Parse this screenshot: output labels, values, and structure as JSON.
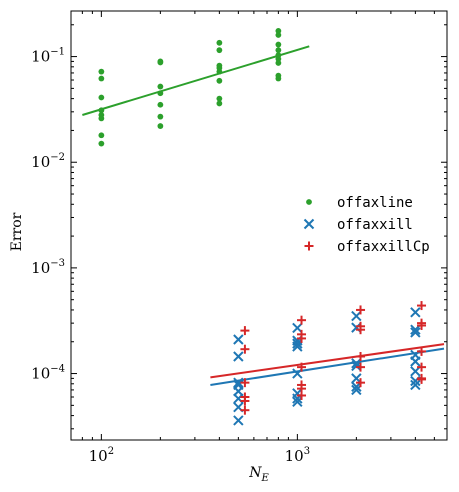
{
  "chart_data": {
    "type": "scatter",
    "xscale": "log",
    "yscale": "log",
    "xlim": [
      70,
      5800
    ],
    "ylim": [
      2.35e-05,
      0.27
    ],
    "xticks": [
      {
        "value": 100,
        "base": "10",
        "exp": "2"
      },
      {
        "value": 1000,
        "base": "10",
        "exp": "3"
      }
    ],
    "yticks": [
      {
        "value": 0.0001,
        "base": "10",
        "exp": "−4"
      },
      {
        "value": 0.001,
        "base": "10",
        "exp": "−3"
      },
      {
        "value": 0.01,
        "base": "10",
        "exp": "−2"
      },
      {
        "value": 0.1,
        "base": "10",
        "exp": "−1"
      }
    ],
    "xlabel": {
      "base": "N",
      "sub": "E"
    },
    "ylabel": "Error",
    "grid": false,
    "legend_position": "center-right",
    "series": [
      {
        "name": "offaxline",
        "marker": "dot",
        "color": "#2ca02c",
        "points": [
          [
            100,
            0.072
          ],
          [
            100,
            0.062
          ],
          [
            100,
            0.041
          ],
          [
            100,
            0.031
          ],
          [
            100,
            0.028
          ],
          [
            100,
            0.026
          ],
          [
            100,
            0.018
          ],
          [
            100,
            0.015
          ],
          [
            200,
            0.09
          ],
          [
            200,
            0.088
          ],
          [
            200,
            0.052
          ],
          [
            200,
            0.045
          ],
          [
            200,
            0.035
          ],
          [
            200,
            0.027
          ],
          [
            200,
            0.022
          ],
          [
            400,
            0.135
          ],
          [
            400,
            0.115
          ],
          [
            400,
            0.082
          ],
          [
            400,
            0.078
          ],
          [
            400,
            0.072
          ],
          [
            400,
            0.059
          ],
          [
            400,
            0.04
          ],
          [
            400,
            0.036
          ],
          [
            800,
            0.175
          ],
          [
            800,
            0.16
          ],
          [
            800,
            0.13
          ],
          [
            800,
            0.115
          ],
          [
            800,
            0.103
          ],
          [
            800,
            0.095
          ],
          [
            800,
            0.087
          ],
          [
            800,
            0.066
          ],
          [
            800,
            0.062
          ]
        ],
        "fit": [
          [
            80,
            0.028
          ],
          [
            1150,
            0.125
          ]
        ]
      },
      {
        "name": "offaxxill",
        "marker": "x",
        "color": "#1f77b4",
        "points": [
          [
            500,
            0.00021
          ],
          [
            500,
            0.000145
          ],
          [
            500,
            8.2e-05
          ],
          [
            500,
            7.8e-05
          ],
          [
            500,
            6.8e-05
          ],
          [
            500,
            5.8e-05
          ],
          [
            500,
            4.8e-05
          ],
          [
            500,
            3.6e-05
          ],
          [
            1000,
            0.00027
          ],
          [
            1000,
            0.000205
          ],
          [
            1000,
            0.000192
          ],
          [
            1000,
            0.00018
          ],
          [
            1000,
            0.0001
          ],
          [
            1000,
            6.5e-05
          ],
          [
            1000,
            5.8e-05
          ],
          [
            1000,
            5.4e-05
          ],
          [
            2000,
            0.00035
          ],
          [
            2000,
            0.000272
          ],
          [
            2000,
            0.000125
          ],
          [
            2000,
            0.000118
          ],
          [
            2000,
            9e-05
          ],
          [
            2000,
            7.5e-05
          ],
          [
            2000,
            7e-05
          ],
          [
            4000,
            0.00038
          ],
          [
            4000,
            0.00026
          ],
          [
            4000,
            0.000245
          ],
          [
            4000,
            0.00015
          ],
          [
            4000,
            0.00013
          ],
          [
            4000,
            0.000105
          ],
          [
            4000,
            8.5e-05
          ],
          [
            4000,
            7.8e-05
          ]
        ],
        "fit": [
          [
            360,
            7.8e-05
          ],
          [
            5600,
            0.000172
          ]
        ]
      },
      {
        "name": "offaxxillCp",
        "marker": "plus",
        "color": "#d62728",
        "points": [
          [
            540,
            0.000255
          ],
          [
            540,
            0.00017
          ],
          [
            540,
            8.2e-05
          ],
          [
            540,
            6e-05
          ],
          [
            540,
            5.5e-05
          ],
          [
            540,
            4.5e-05
          ],
          [
            1050,
            0.00032
          ],
          [
            1050,
            0.000235
          ],
          [
            1050,
            0.000215
          ],
          [
            1050,
            0.000115
          ],
          [
            1050,
            7.8e-05
          ],
          [
            1050,
            7.2e-05
          ],
          [
            1050,
            6.2e-05
          ],
          [
            2100,
            0.0004
          ],
          [
            2100,
            0.00028
          ],
          [
            2100,
            0.00026
          ],
          [
            2100,
            0.000145
          ],
          [
            2100,
            0.000115
          ],
          [
            2100,
            8.2e-05
          ],
          [
            4300,
            0.00044
          ],
          [
            4300,
            0.0003
          ],
          [
            4300,
            0.000285
          ],
          [
            4300,
            0.000162
          ],
          [
            4300,
            0.000115
          ],
          [
            4300,
            9e-05
          ],
          [
            4300,
            8.8e-05
          ]
        ],
        "fit": [
          [
            360,
            9.2e-05
          ],
          [
            5600,
            0.00019
          ]
        ]
      }
    ]
  }
}
